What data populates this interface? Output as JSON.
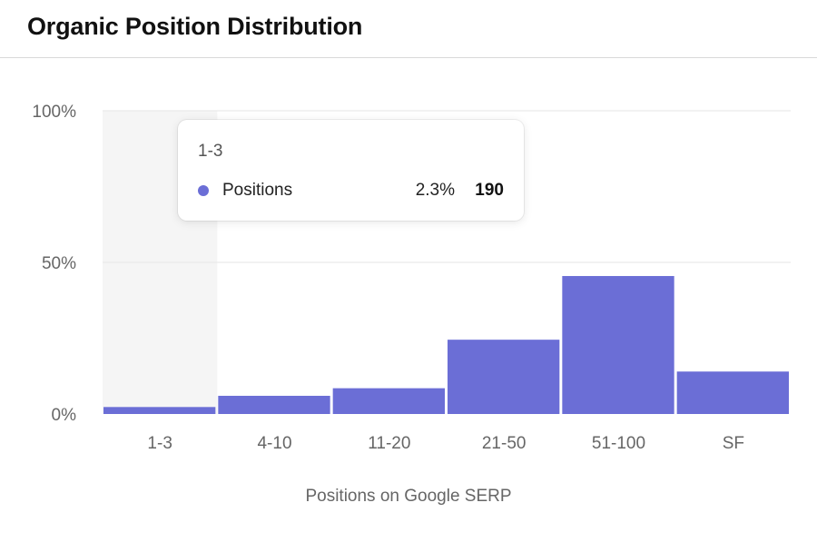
{
  "header": {
    "title": "Organic Position Distribution"
  },
  "colors": {
    "bar": "#6b6ed6",
    "highlight_band": "#f5f5f5",
    "grid": "#e6e6e6",
    "axis_text": "#666666"
  },
  "chart_data": {
    "type": "bar",
    "title": "Organic Position Distribution",
    "xlabel": "Positions on Google SERP",
    "ylabel": "",
    "categories": [
      "1-3",
      "4-10",
      "11-20",
      "21-50",
      "51-100",
      "SF"
    ],
    "series": [
      {
        "name": "Positions",
        "values": [
          2.3,
          6,
          8.5,
          24.5,
          45.5,
          14
        ]
      }
    ],
    "ylim": [
      0,
      100
    ],
    "yticks": [
      0,
      50,
      100
    ],
    "ytick_labels": [
      "0%",
      "50%",
      "100%"
    ],
    "grid": true,
    "highlighted_category": "1-3"
  },
  "tooltip": {
    "category": "1-3",
    "series_name": "Positions",
    "percent": "2.3%",
    "count": "190"
  }
}
